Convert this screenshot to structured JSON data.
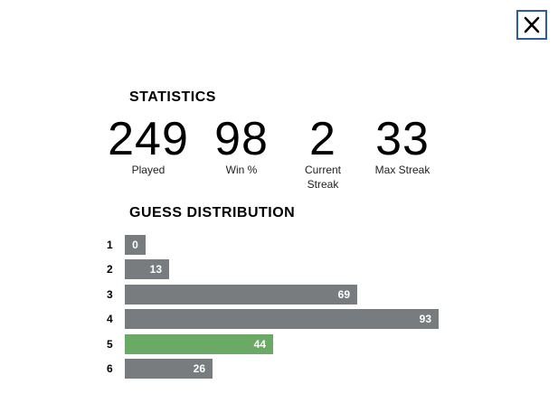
{
  "close_button": {
    "icon": "close-icon",
    "color": "#2f5aa8"
  },
  "statistics": {
    "title": "STATISTICS",
    "items": [
      {
        "value": "249",
        "label": "Played"
      },
      {
        "value": "98",
        "label": "Win %"
      },
      {
        "value": "2",
        "label": "Current Streak"
      },
      {
        "value": "33",
        "label": "Max Streak"
      }
    ]
  },
  "guess_distribution": {
    "title": "GUESS DISTRIBUTION",
    "bar_color": "#787c7e",
    "highlight_color": "#6aaa64",
    "highlight_guess": "5",
    "rows": [
      {
        "guess": "1",
        "count": 0
      },
      {
        "guess": "2",
        "count": 13
      },
      {
        "guess": "3",
        "count": 69
      },
      {
        "guess": "4",
        "count": 93
      },
      {
        "guess": "5",
        "count": 44
      },
      {
        "guess": "6",
        "count": 26
      }
    ]
  }
}
